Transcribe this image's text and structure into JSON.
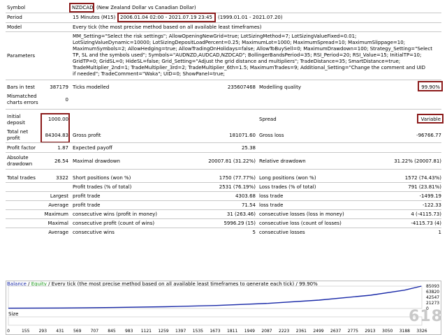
{
  "header": {
    "symbol_label": "Symbol",
    "symbol_code": "NZDCAD",
    "symbol_desc": "(New Zealand Dollar vs Canadian Dollar)",
    "period_label": "Period",
    "period_tf": "15 Minutes (M15)",
    "period_range": "2006.01.04 02:00 - 2021.07.19 23:45",
    "period_extra": "(1999.01.01 - 2021.07.20)",
    "model_label": "Model",
    "model_value": "Every tick (the most precise method based on all available least timeframes)",
    "params_label": "Parameters",
    "params_lines": [
      "MM_Setting=\"Select the risk settings\"; AllowOpeningNewGrid=true; LotSizingMethod=7; LotSizingValueFixed=0.01;",
      "LotSizingValueDynamic=10000; LotSizingDepositLoadPercent=0.25; MaximumLot=1000; MaximumSpread=10; MaximumSlippage=10;",
      "MaximumSymbols=2; AllowHedging=true; AllowTradingOnHolidays=false; AllowToBuySell=0; MaximumDrawdown=100; Strategy_Setting=\"Select",
      "TP, SL and the symbols used\"; Symbols=\"AUDNZD,AUDCAD,NZDCAD\"; BollingerBandsPeriod=35; RSI_Period=20; RSI_Value=15; InitialTP=10;",
      "GridTP=0; GridSL=0; HideSL=false; Grid_Setting=\"Adjust the grid distance and multipliers\"; TradeDistance=35; SmartDistance=true;",
      "TradeMultiplier_2nd=1; TradeMultiplier_3rd=2; TradeMultiplier_6th=1.5; MaximumTrades=9; Additional_Setting=\"Change the comment and UID",
      "if needed\"; TradeComment=\"Waka\"; UID=0; ShowPanel=true;"
    ]
  },
  "stats": {
    "bars_label": "Bars in test",
    "bars_value": "387179",
    "ticks_label": "Ticks modelled",
    "ticks_value": "235607468",
    "quality_label": "Modelling quality",
    "quality_value": "99.90%",
    "mismatch_label_1": "Mismatched",
    "mismatch_label_2": "charts errors",
    "mismatch_value": "0",
    "initial_label_1": "Initial",
    "initial_label_2": "deposit",
    "initial_value": "1000.00",
    "spread_label": "Spread",
    "spread_value": "Variable",
    "net_label_1": "Total net",
    "net_label_2": "profit",
    "net_value": "84304.83",
    "gross_profit_label": "Gross profit",
    "gross_profit_value": "181071.60",
    "gross_loss_label": "Gross loss",
    "gross_loss_value": "-96766.77",
    "pf_label": "Profit factor",
    "pf_value": "1.87",
    "ep_label": "Expected payoff",
    "ep_value": "25.38",
    "abs_dd_label_1": "Absolute",
    "abs_dd_label_2": "drawdown",
    "abs_dd_value": "26.54",
    "max_dd_label": "Maximal drawdown",
    "max_dd_value": "20007.81 (31.22%)",
    "rel_dd_label": "Relative drawdown",
    "rel_dd_value": "31.22% (20007.81)",
    "tt_label": "Total trades",
    "tt_value": "3322",
    "short_label": "Short positions (won %)",
    "short_value": "1750 (77.77%)",
    "long_label": "Long positions (won %)",
    "long_value": "1572 (74.43%)",
    "pt_label": "Profit trades (% of total)",
    "pt_value": "2531 (76.19%)",
    "lt_label": "Loss trades (% of total)",
    "lt_value": "791 (23.81%)",
    "largest": "Largest",
    "average": "Average",
    "maximum": "Maximum",
    "maximal": "Maximal",
    "profit_trade": "profit trade",
    "loss_trade": "loss trade",
    "largest_profit": "4303.68",
    "largest_loss": "-1499.19",
    "average_profit": "71.54",
    "average_loss": "-122.33",
    "mcw_label": "consecutive wins (profit in money)",
    "mcw_value": "31 (263.46)",
    "mcl_label": "consecutive losses (loss in money)",
    "mcl_value": "4 (-4115.73)",
    "mcp_label": "consecutive profit (count of wins)",
    "mcp_value": "5996.29 (15)",
    "mcloss_label": "consecutive loss (count of losses)",
    "mcloss_value": "-4115.73 (4)",
    "acw_label": "consecutive wins",
    "acw_value": "5",
    "acl_label": "consecutive losses",
    "acl_value": "1"
  },
  "graph": {
    "legend_balance": "Balance",
    "legend_sep": "/",
    "legend_equity": "Equity",
    "legend_text": "/ Every tick (the most precise method based on all available least timeframes to generate each tick) / 99.90%",
    "size_label": "Size",
    "y_ticks": [
      "85093",
      "63820",
      "42547",
      "21273",
      "0"
    ],
    "x_ticks": [
      "0",
      "155",
      "293",
      "431",
      "569",
      "707",
      "845",
      "983",
      "1121",
      "1259",
      "1397",
      "1535",
      "1673",
      "1811",
      "1949",
      "2087",
      "2223",
      "2361",
      "2499",
      "2637",
      "2775",
      "2913",
      "3050",
      "3188",
      "3326"
    ]
  },
  "chart_data": {
    "type": "line",
    "series": [
      {
        "name": "Balance",
        "x": [
          0,
          431,
          845,
          1259,
          1673,
          2087,
          2499,
          2913,
          3188,
          3322
        ],
        "values": [
          1000,
          1900,
          3700,
          6600,
          11500,
          19500,
          32000,
          50500,
          70000,
          85093
        ]
      }
    ],
    "ylim": [
      0,
      85093
    ],
    "colors": {
      "balance": "#1a2aa8",
      "equity": "#1a9a1a"
    }
  },
  "watermark": "618"
}
